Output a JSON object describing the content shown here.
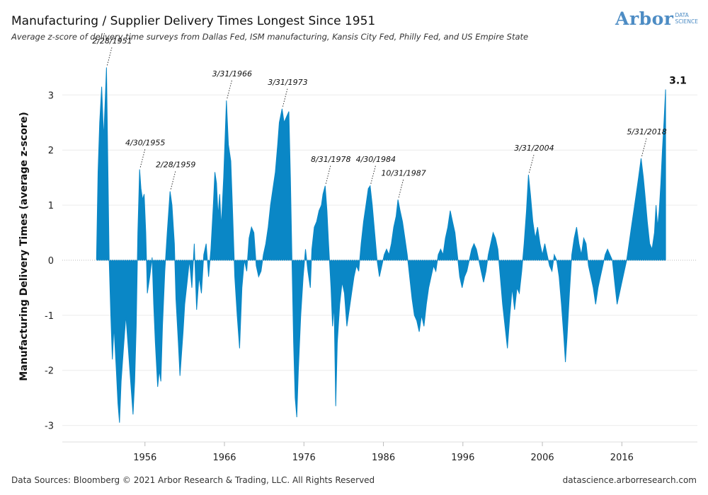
{
  "header": {
    "title": "Manufacturing / Supplier Delivery Times Longest Since 1951",
    "subtitle": "Average z-score of delivery time surveys from Dallas Fed, ISM manufacturing, Kansis City Fed, Philly Fed, and US Empire State"
  },
  "logo": {
    "main": "Arbor",
    "sub1": "DATA",
    "sub2": "SCIENCE"
  },
  "footer": {
    "left": "Data Sources: Bloomberg © 2021 Arbor Research & Trading, LLC. All Rights Reserved",
    "right": "datascience.arborresearch.com"
  },
  "colors": {
    "fill": "#0a87c6",
    "zero_line": "#bbbbbb",
    "brand": "#4d8cc4"
  },
  "chart_data": {
    "type": "area",
    "title": "Manufacturing / Supplier Delivery Times Longest Since 1951",
    "subtitle": "Average z-score of delivery time surveys from Dallas Fed, ISM manufacturing, Kansis City Fed, Philly Fed, and US Empire State",
    "ylabel": "Manufacturing Delivery Times (average z-score)",
    "xlabel": "",
    "xlim": [
      1945.6,
      2025.5
    ],
    "ylim": [
      -3.3,
      3.8
    ],
    "grid": true,
    "x_ticks": [
      1956,
      1966,
      1976,
      1986,
      1996,
      2006,
      2016
    ],
    "x_tick_labels": [
      "1956",
      "1966",
      "1976",
      "1986",
      "1996",
      "2006",
      "2016"
    ],
    "y_ticks": [
      -3,
      -2,
      -1,
      0,
      1,
      2,
      3
    ],
    "y_tick_labels": [
      "-3",
      "-2",
      "-1",
      "0",
      "1",
      "2",
      "3"
    ],
    "last_value_label": "3.1",
    "annotations": [
      {
        "label": "2/28/1951",
        "x": 1951.16,
        "y": 3.5
      },
      {
        "label": "4/30/1955",
        "x": 1955.33,
        "y": 1.65
      },
      {
        "label": "2/28/1959",
        "x": 1959.16,
        "y": 1.25
      },
      {
        "label": "3/31/1966",
        "x": 1966.25,
        "y": 2.9
      },
      {
        "label": "3/31/1973",
        "x": 1973.25,
        "y": 2.75
      },
      {
        "label": "8/31/1978",
        "x": 1978.67,
        "y": 1.35
      },
      {
        "label": "4/30/1984",
        "x": 1984.33,
        "y": 1.35
      },
      {
        "label": "10/31/1987",
        "x": 1987.83,
        "y": 1.1
      },
      {
        "label": "3/31/2004",
        "x": 2004.25,
        "y": 1.55
      },
      {
        "label": "5/31/2018",
        "x": 2018.42,
        "y": 1.85
      }
    ],
    "series": [
      {
        "points": [
          [
            1949.9,
            0.0
          ],
          [
            1950.1,
            1.6
          ],
          [
            1950.3,
            2.5
          ],
          [
            1950.55,
            3.15
          ],
          [
            1950.8,
            2.2
          ],
          [
            1951.0,
            2.9
          ],
          [
            1951.16,
            3.5
          ],
          [
            1951.35,
            1.5
          ],
          [
            1951.5,
            0.0
          ],
          [
            1951.7,
            -1.0
          ],
          [
            1951.9,
            -1.8
          ],
          [
            1952.1,
            -1.2
          ],
          [
            1952.4,
            -2.0
          ],
          [
            1952.6,
            -2.6
          ],
          [
            1952.8,
            -2.95
          ],
          [
            1953.0,
            -2.2
          ],
          [
            1953.3,
            -1.6
          ],
          [
            1953.6,
            -1.0
          ],
          [
            1953.9,
            -1.6
          ],
          [
            1954.2,
            -2.2
          ],
          [
            1954.5,
            -2.8
          ],
          [
            1954.7,
            -2.2
          ],
          [
            1954.9,
            -1.2
          ],
          [
            1955.1,
            0.5
          ],
          [
            1955.33,
            1.65
          ],
          [
            1955.5,
            1.3
          ],
          [
            1955.7,
            1.1
          ],
          [
            1955.9,
            1.2
          ],
          [
            1956.1,
            0.5
          ],
          [
            1956.3,
            -0.6
          ],
          [
            1956.6,
            -0.3
          ],
          [
            1956.9,
            0.05
          ],
          [
            1957.1,
            -0.8
          ],
          [
            1957.3,
            -1.5
          ],
          [
            1957.6,
            -2.3
          ],
          [
            1957.8,
            -2.0
          ],
          [
            1958.0,
            -2.2
          ],
          [
            1958.2,
            -1.2
          ],
          [
            1958.5,
            -0.2
          ],
          [
            1958.8,
            0.5
          ],
          [
            1959.16,
            1.25
          ],
          [
            1959.4,
            1.0
          ],
          [
            1959.7,
            0.3
          ],
          [
            1959.9,
            -0.7
          ],
          [
            1960.2,
            -1.5
          ],
          [
            1960.4,
            -2.1
          ],
          [
            1960.6,
            -1.7
          ],
          [
            1960.8,
            -1.3
          ],
          [
            1961.0,
            -0.8
          ],
          [
            1961.3,
            -0.4
          ],
          [
            1961.6,
            0.0
          ],
          [
            1961.9,
            -0.5
          ],
          [
            1962.2,
            0.3
          ],
          [
            1962.5,
            -0.9
          ],
          [
            1962.8,
            -0.3
          ],
          [
            1963.1,
            -0.6
          ],
          [
            1963.4,
            0.1
          ],
          [
            1963.7,
            0.3
          ],
          [
            1964.0,
            -0.3
          ],
          [
            1964.3,
            0.2
          ],
          [
            1964.6,
            1.0
          ],
          [
            1964.8,
            1.6
          ],
          [
            1965.0,
            1.4
          ],
          [
            1965.2,
            0.8
          ],
          [
            1965.4,
            1.2
          ],
          [
            1965.6,
            0.6
          ],
          [
            1965.9,
            1.5
          ],
          [
            1966.25,
            2.9
          ],
          [
            1966.5,
            2.1
          ],
          [
            1966.8,
            1.8
          ],
          [
            1967.0,
            1.0
          ],
          [
            1967.3,
            -0.3
          ],
          [
            1967.6,
            -1.0
          ],
          [
            1967.9,
            -1.6
          ],
          [
            1968.2,
            -0.5
          ],
          [
            1968.5,
            0.0
          ],
          [
            1968.8,
            -0.2
          ],
          [
            1969.1,
            0.4
          ],
          [
            1969.4,
            0.6
          ],
          [
            1969.7,
            0.5
          ],
          [
            1970.0,
            -0.1
          ],
          [
            1970.3,
            -0.3
          ],
          [
            1970.6,
            -0.2
          ],
          [
            1970.9,
            0.1
          ],
          [
            1971.2,
            0.3
          ],
          [
            1971.5,
            0.6
          ],
          [
            1971.8,
            1.0
          ],
          [
            1972.1,
            1.3
          ],
          [
            1972.4,
            1.6
          ],
          [
            1972.7,
            2.1
          ],
          [
            1972.9,
            2.5
          ],
          [
            1973.25,
            2.75
          ],
          [
            1973.5,
            2.5
          ],
          [
            1973.8,
            2.6
          ],
          [
            1974.1,
            2.7
          ],
          [
            1974.3,
            1.5
          ],
          [
            1974.5,
            0.0
          ],
          [
            1974.7,
            -1.5
          ],
          [
            1974.9,
            -2.5
          ],
          [
            1975.1,
            -2.85
          ],
          [
            1975.3,
            -2.0
          ],
          [
            1975.6,
            -1.0
          ],
          [
            1975.9,
            -0.3
          ],
          [
            1976.2,
            0.2
          ],
          [
            1976.5,
            -0.2
          ],
          [
            1976.8,
            -0.5
          ],
          [
            1977.0,
            0.2
          ],
          [
            1977.3,
            0.6
          ],
          [
            1977.6,
            0.7
          ],
          [
            1977.9,
            0.9
          ],
          [
            1978.2,
            1.0
          ],
          [
            1978.4,
            1.2
          ],
          [
            1978.67,
            1.35
          ],
          [
            1978.9,
            0.9
          ],
          [
            1979.1,
            0.3
          ],
          [
            1979.4,
            -0.5
          ],
          [
            1979.6,
            -1.2
          ],
          [
            1979.8,
            -0.8
          ],
          [
            1980.0,
            -2.65
          ],
          [
            1980.2,
            -1.5
          ],
          [
            1980.5,
            -0.8
          ],
          [
            1980.8,
            -0.4
          ],
          [
            1981.1,
            -0.6
          ],
          [
            1981.4,
            -1.2
          ],
          [
            1981.7,
            -0.9
          ],
          [
            1982.0,
            -0.6
          ],
          [
            1982.3,
            -0.3
          ],
          [
            1982.6,
            -0.1
          ],
          [
            1982.9,
            -0.2
          ],
          [
            1983.2,
            0.3
          ],
          [
            1983.5,
            0.7
          ],
          [
            1983.8,
            1.0
          ],
          [
            1984.1,
            1.3
          ],
          [
            1984.33,
            1.35
          ],
          [
            1984.6,
            1.0
          ],
          [
            1984.9,
            0.5
          ],
          [
            1985.2,
            0.0
          ],
          [
            1985.5,
            -0.3
          ],
          [
            1985.8,
            -0.1
          ],
          [
            1986.1,
            0.1
          ],
          [
            1986.4,
            0.2
          ],
          [
            1986.7,
            0.1
          ],
          [
            1987.0,
            0.3
          ],
          [
            1987.3,
            0.6
          ],
          [
            1987.6,
            0.8
          ],
          [
            1987.83,
            1.1
          ],
          [
            1988.1,
            0.9
          ],
          [
            1988.4,
            0.7
          ],
          [
            1988.7,
            0.4
          ],
          [
            1989.0,
            0.1
          ],
          [
            1989.3,
            -0.3
          ],
          [
            1989.6,
            -0.7
          ],
          [
            1989.9,
            -1.0
          ],
          [
            1990.2,
            -1.1
          ],
          [
            1990.5,
            -1.3
          ],
          [
            1990.8,
            -1.0
          ],
          [
            1991.1,
            -1.2
          ],
          [
            1991.4,
            -0.8
          ],
          [
            1991.7,
            -0.5
          ],
          [
            1992.0,
            -0.3
          ],
          [
            1992.3,
            -0.1
          ],
          [
            1992.6,
            -0.2
          ],
          [
            1992.9,
            0.1
          ],
          [
            1993.2,
            0.2
          ],
          [
            1993.5,
            0.1
          ],
          [
            1993.8,
            0.4
          ],
          [
            1994.1,
            0.6
          ],
          [
            1994.4,
            0.9
          ],
          [
            1994.7,
            0.7
          ],
          [
            1995.0,
            0.5
          ],
          [
            1995.3,
            0.1
          ],
          [
            1995.6,
            -0.3
          ],
          [
            1995.9,
            -0.5
          ],
          [
            1996.2,
            -0.3
          ],
          [
            1996.5,
            -0.2
          ],
          [
            1996.8,
            0.0
          ],
          [
            1997.1,
            0.2
          ],
          [
            1997.4,
            0.3
          ],
          [
            1997.7,
            0.2
          ],
          [
            1998.0,
            0.0
          ],
          [
            1998.3,
            -0.2
          ],
          [
            1998.6,
            -0.4
          ],
          [
            1998.9,
            -0.2
          ],
          [
            1999.2,
            0.1
          ],
          [
            1999.5,
            0.3
          ],
          [
            1999.8,
            0.5
          ],
          [
            2000.1,
            0.4
          ],
          [
            2000.4,
            0.2
          ],
          [
            2000.7,
            -0.3
          ],
          [
            2001.0,
            -0.8
          ],
          [
            2001.3,
            -1.2
          ],
          [
            2001.6,
            -1.6
          ],
          [
            2001.9,
            -1.0
          ],
          [
            2002.2,
            -0.5
          ],
          [
            2002.5,
            -0.9
          ],
          [
            2002.8,
            -0.5
          ],
          [
            2003.1,
            -0.6
          ],
          [
            2003.4,
            -0.2
          ],
          [
            2003.7,
            0.3
          ],
          [
            2004.0,
            0.9
          ],
          [
            2004.25,
            1.55
          ],
          [
            2004.5,
            1.2
          ],
          [
            2004.8,
            0.7
          ],
          [
            2005.1,
            0.4
          ],
          [
            2005.4,
            0.6
          ],
          [
            2005.7,
            0.3
          ],
          [
            2006.0,
            0.1
          ],
          [
            2006.3,
            0.3
          ],
          [
            2006.6,
            0.1
          ],
          [
            2006.9,
            -0.1
          ],
          [
            2007.2,
            -0.2
          ],
          [
            2007.5,
            0.1
          ],
          [
            2007.8,
            0.0
          ],
          [
            2008.1,
            -0.3
          ],
          [
            2008.4,
            -0.8
          ],
          [
            2008.7,
            -1.4
          ],
          [
            2008.9,
            -1.85
          ],
          [
            2009.1,
            -1.4
          ],
          [
            2009.4,
            -0.6
          ],
          [
            2009.7,
            0.1
          ],
          [
            2010.0,
            0.4
          ],
          [
            2010.3,
            0.6
          ],
          [
            2010.6,
            0.3
          ],
          [
            2010.9,
            0.1
          ],
          [
            2011.2,
            0.4
          ],
          [
            2011.5,
            0.3
          ],
          [
            2011.8,
            -0.1
          ],
          [
            2012.1,
            -0.3
          ],
          [
            2012.4,
            -0.5
          ],
          [
            2012.7,
            -0.8
          ],
          [
            2013.0,
            -0.5
          ],
          [
            2013.3,
            -0.3
          ],
          [
            2013.6,
            -0.1
          ],
          [
            2013.9,
            0.1
          ],
          [
            2014.2,
            0.2
          ],
          [
            2014.5,
            0.1
          ],
          [
            2014.8,
            0.0
          ],
          [
            2015.1,
            -0.4
          ],
          [
            2015.4,
            -0.8
          ],
          [
            2015.7,
            -0.6
          ],
          [
            2016.0,
            -0.4
          ],
          [
            2016.3,
            -0.2
          ],
          [
            2016.6,
            0.0
          ],
          [
            2016.9,
            0.3
          ],
          [
            2017.2,
            0.6
          ],
          [
            2017.5,
            0.9
          ],
          [
            2017.8,
            1.2
          ],
          [
            2018.1,
            1.5
          ],
          [
            2018.42,
            1.85
          ],
          [
            2018.7,
            1.5
          ],
          [
            2018.9,
            1.2
          ],
          [
            2019.2,
            0.7
          ],
          [
            2019.5,
            0.3
          ],
          [
            2019.8,
            0.2
          ],
          [
            2020.1,
            0.5
          ],
          [
            2020.3,
            1.0
          ],
          [
            2020.5,
            0.6
          ],
          [
            2020.7,
            0.9
          ],
          [
            2020.9,
            1.4
          ],
          [
            2021.1,
            2.0
          ],
          [
            2021.3,
            2.5
          ],
          [
            2021.5,
            3.1
          ]
        ]
      }
    ]
  }
}
